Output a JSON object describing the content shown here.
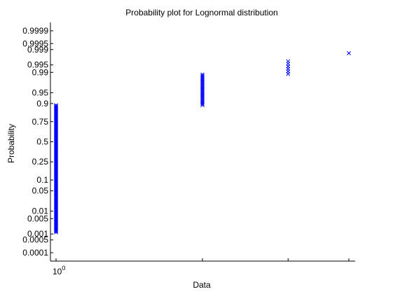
{
  "chart_data": {
    "type": "scatter",
    "title": "Probability plot for Lognormal distribution",
    "xlabel": "Data",
    "ylabel": "Probability",
    "x_scale": "log",
    "y_scale": "normal-probability",
    "x_tick_label": {
      "base": "10",
      "exponent": "0"
    },
    "y_ticks": [
      {
        "p": 0.0001,
        "label": "0.0001"
      },
      {
        "p": 0.0005,
        "label": "0.0005"
      },
      {
        "p": 0.001,
        "label": "0.001"
      },
      {
        "p": 0.005,
        "label": "0.005"
      },
      {
        "p": 0.01,
        "label": "0.01"
      },
      {
        "p": 0.05,
        "label": "0.05"
      },
      {
        "p": 0.1,
        "label": "0.1"
      },
      {
        "p": 0.25,
        "label": "0.25"
      },
      {
        "p": 0.5,
        "label": "0.5"
      },
      {
        "p": 0.75,
        "label": "0.75"
      },
      {
        "p": 0.9,
        "label": "0.9"
      },
      {
        "p": 0.95,
        "label": "0.95"
      },
      {
        "p": 0.99,
        "label": "0.99"
      },
      {
        "p": 0.995,
        "label": "0.995"
      },
      {
        "p": 0.999,
        "label": "0.999"
      },
      {
        "p": 0.9995,
        "label": "0.9995"
      },
      {
        "p": 0.9999,
        "label": "0.9999"
      }
    ],
    "groups": [
      {
        "x": 1,
        "p_low": 0.0012,
        "p_high": 0.89,
        "count": 140
      },
      {
        "x": 2,
        "p_low": 0.89,
        "p_high": 0.988,
        "count": 25
      },
      {
        "x": 3,
        "p_low": 0.9885,
        "p_high": 0.9965,
        "count": 6
      },
      {
        "x": 4,
        "p_low": 0.9985,
        "p_high": 0.9985,
        "count": 1
      }
    ],
    "marker": "x",
    "series_color": "#0000ff",
    "grid": false
  }
}
